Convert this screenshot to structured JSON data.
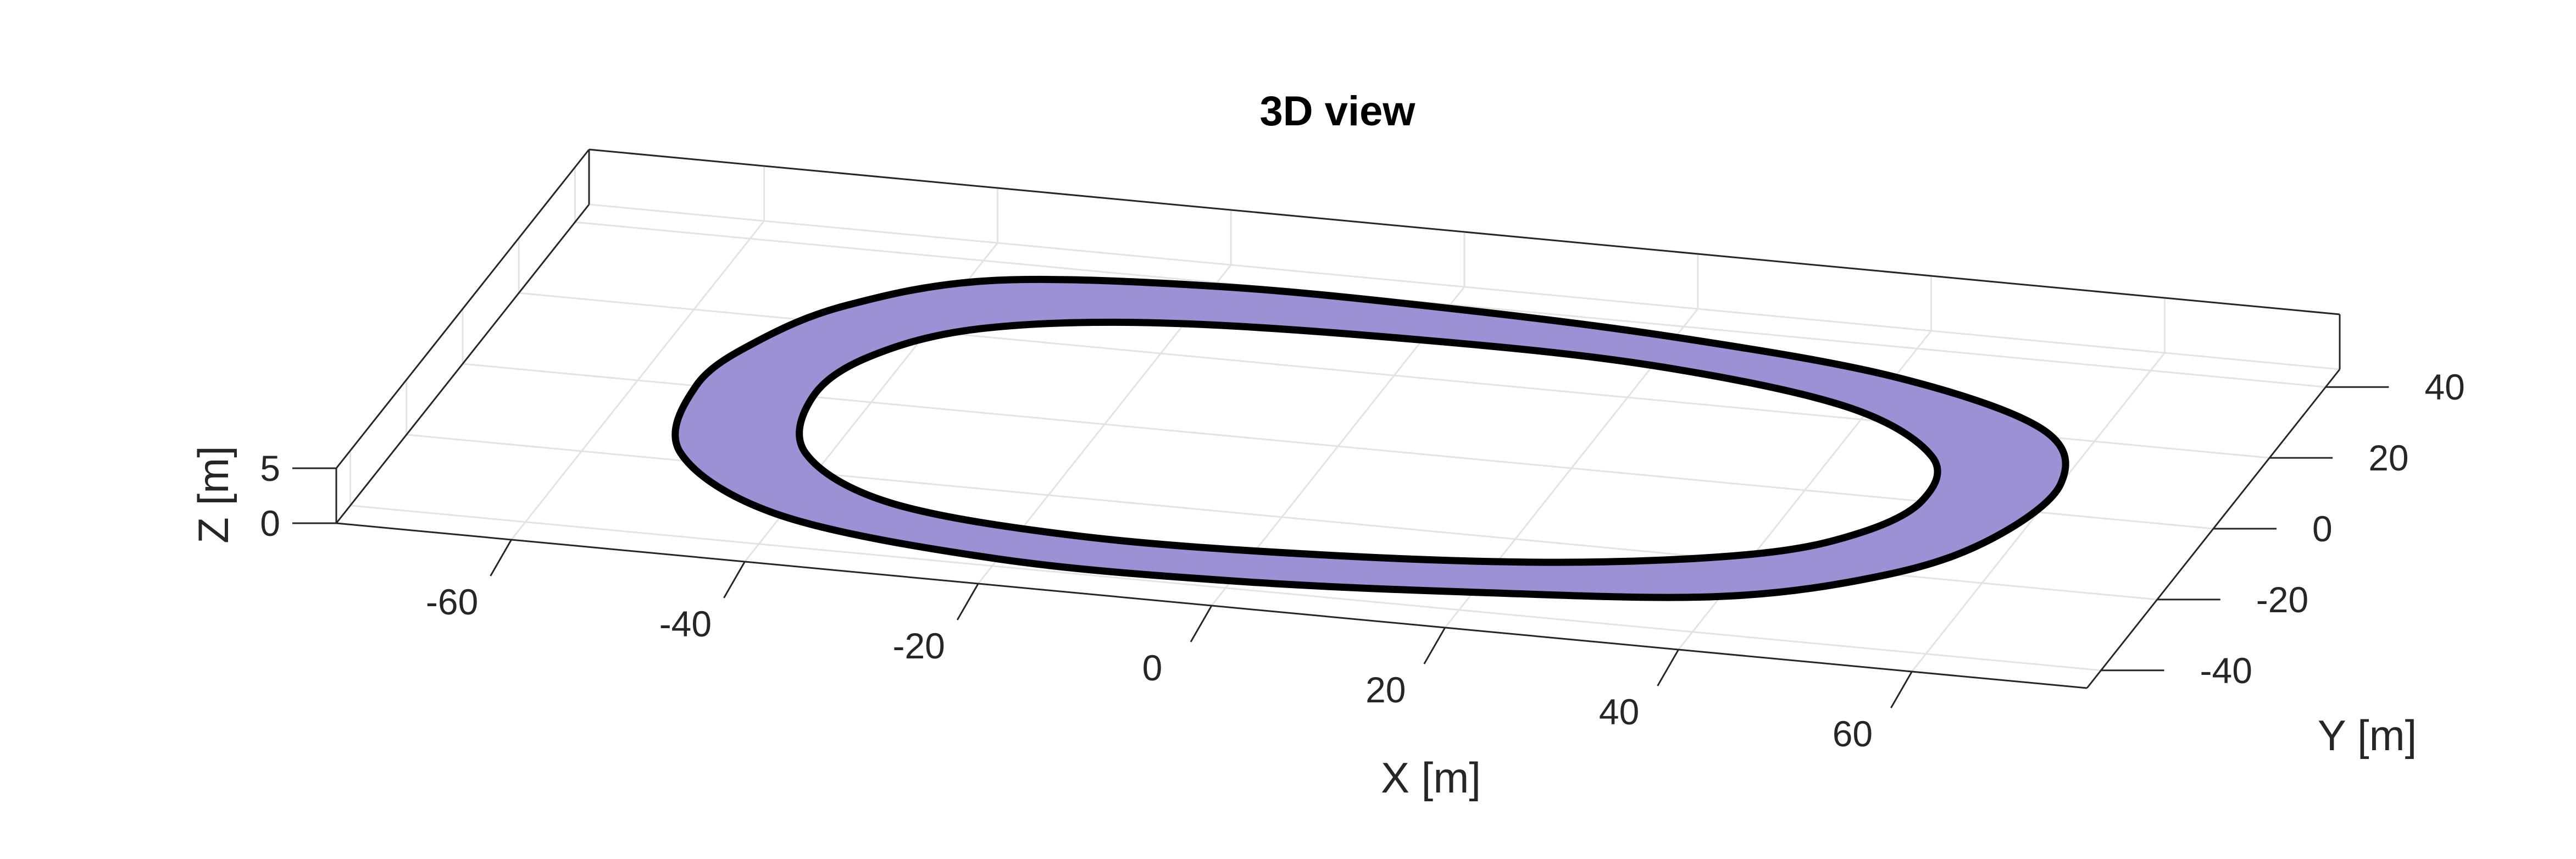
{
  "chart_data": {
    "type": "area",
    "view": "3d",
    "title": "3D view",
    "xlabel": "X [m]",
    "ylabel": "Y [m]",
    "zlabel": "Z [m]",
    "xlim": [
      -75,
      75
    ],
    "ylim": [
      -45,
      45
    ],
    "zlim": [
      0,
      5
    ],
    "xticks": [
      -60,
      -40,
      -20,
      0,
      20,
      40,
      60
    ],
    "xtick_labels": [
      "-60",
      "-40",
      "-20",
      "0",
      "20",
      "40",
      "60"
    ],
    "yticks": [
      -40,
      -20,
      0,
      20,
      40
    ],
    "ytick_labels": [
      "-40",
      "-20",
      "0",
      "20",
      "40"
    ],
    "zticks": [
      0,
      5
    ],
    "ztick_labels": [
      "0",
      "5"
    ],
    "grid": true,
    "track": {
      "description": "closed-loop track surface, flat at z=0",
      "fill_color": "#9b92d6",
      "edge_color": "#000000",
      "outer_boundary": [
        [
          -55,
          0
        ],
        [
          -53,
          13
        ],
        [
          -48,
          25
        ],
        [
          -38,
          35
        ],
        [
          -20,
          39
        ],
        [
          0,
          39
        ],
        [
          20,
          37
        ],
        [
          40,
          32
        ],
        [
          55,
          22
        ],
        [
          60,
          8
        ],
        [
          58,
          -8
        ],
        [
          52,
          -20
        ],
        [
          40,
          -30
        ],
        [
          20,
          -35
        ],
        [
          0,
          -38
        ],
        [
          -20,
          -38
        ],
        [
          -40,
          -32
        ],
        [
          -52,
          -18
        ]
      ],
      "inner_boundary": [
        [
          -45,
          0
        ],
        [
          -43,
          12
        ],
        [
          -36,
          22
        ],
        [
          -22,
          28
        ],
        [
          0,
          30
        ],
        [
          20,
          29
        ],
        [
          38,
          23
        ],
        [
          48,
          12
        ],
        [
          50,
          0
        ],
        [
          47,
          -10
        ],
        [
          40,
          -18
        ],
        [
          25,
          -25
        ],
        [
          5,
          -29
        ],
        [
          -15,
          -30
        ],
        [
          -32,
          -26
        ],
        [
          -42,
          -15
        ]
      ]
    }
  }
}
